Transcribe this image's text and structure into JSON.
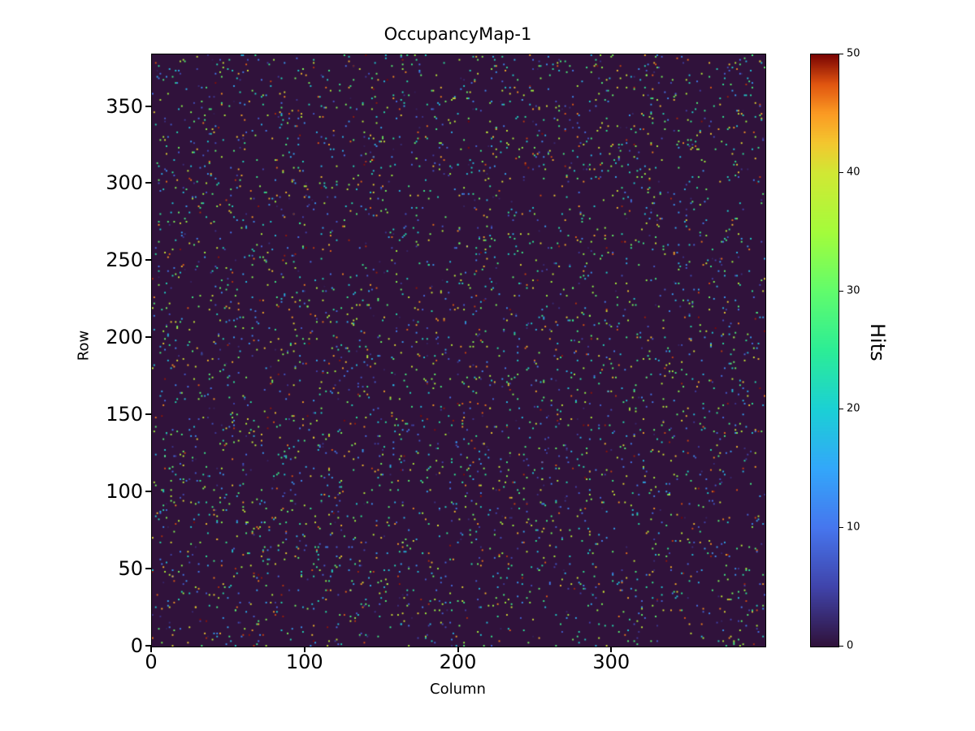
{
  "title": "OccupancyMap-1",
  "axes": {
    "xlabel": "Column",
    "ylabel": "Row",
    "x_ticks": [
      0,
      100,
      200,
      300
    ],
    "y_ticks": [
      0,
      50,
      100,
      150,
      200,
      250,
      300,
      350
    ]
  },
  "colorbar": {
    "label": "Hits",
    "ticks": [
      0,
      10,
      20,
      30,
      40,
      50
    ],
    "min": 0,
    "max": 50
  },
  "chart_data": {
    "type": "heatmap",
    "title": "OccupancyMap-1",
    "xlabel": "Column",
    "ylabel": "Row",
    "n_cols": 400,
    "n_rows": 384,
    "xlim": [
      0,
      400
    ],
    "ylim": [
      0,
      384
    ],
    "value_range": [
      0,
      50
    ],
    "background_value": 0,
    "colormap": "turbo",
    "colormap_zero_color": "#30123b",
    "colormap_max_color": "#7a0403",
    "hit_density": 0.028,
    "hit_value_range": [
      1,
      50
    ],
    "seed": 20240613,
    "colorbar_label": "Hits",
    "colorbar_ticks": [
      0,
      10,
      20,
      30,
      40,
      50
    ],
    "grid": false,
    "legend": "none",
    "description": "Sparse randomly scattered hit pixels (~3% occupancy) with counts 1-50 drawn over a zero-count dark purple background; rendered with a turbo-style colormap"
  }
}
